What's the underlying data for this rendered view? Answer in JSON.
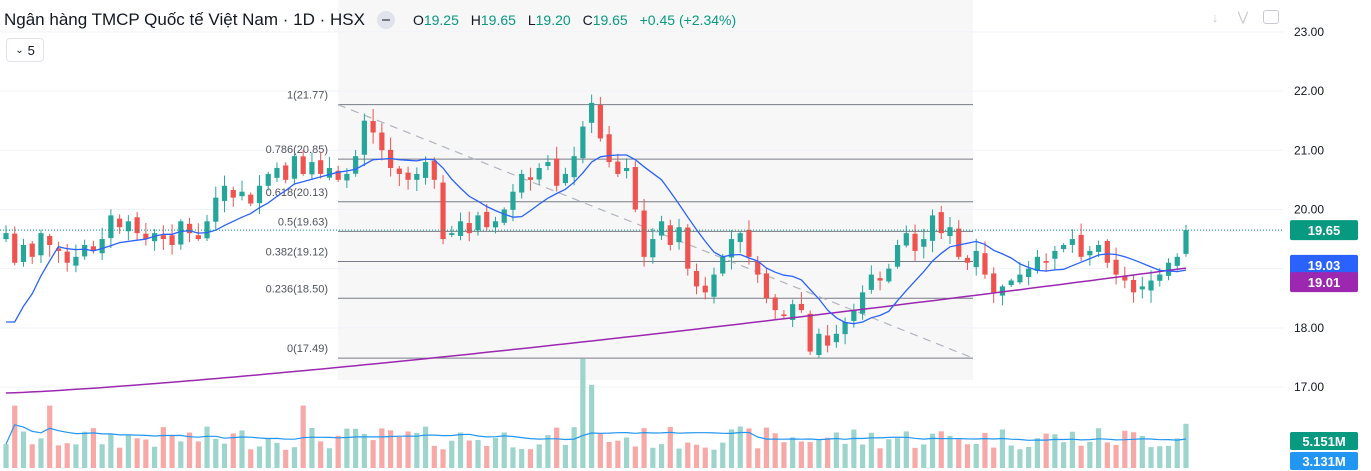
{
  "header": {
    "symbol_title": "Ngân hàng TMCP Quốc tế Việt Nam · 1D · HSX",
    "open_label": "O",
    "open_value": "19.25",
    "high_label": "H",
    "high_value": "19.65",
    "low_label": "L",
    "low_value": "19.20",
    "close_label": "C",
    "close_value": "19.65",
    "change": "+0.45 (+2.34%)",
    "indicator_count": "5"
  },
  "colors": {
    "up": "#26a69a",
    "down": "#ef5350",
    "ma_short": "#2962ff",
    "ma_long": "#9c27b0",
    "vol_up": "#9dd5cc",
    "vol_down": "#f7a9a7",
    "vol_ma": "#2196f3",
    "fib": "#787b86",
    "price_label": "#089981"
  },
  "chart_data": {
    "type": "candlestick",
    "y_axis": {
      "range": [
        16.9,
        23.2
      ],
      "ticks": [
        "23.00",
        "22.00",
        "21.00",
        "20.00",
        "19.00",
        "18.00",
        "17.00"
      ]
    },
    "price_labels": [
      {
        "text": "19.65",
        "value": 19.65,
        "color": "#089981"
      },
      {
        "text": "19.03",
        "value": 19.03,
        "color": "#2962ff"
      },
      {
        "text": "19.01",
        "value": 19.01,
        "color": "#9c27b0"
      }
    ],
    "volume_labels": [
      {
        "text": "5.151M",
        "color": "#089981"
      },
      {
        "text": "3.131M",
        "color": "#2196f3"
      }
    ],
    "fibonacci": [
      {
        "label": "1(21.77)",
        "value": 21.77
      },
      {
        "label": "0.786(20.85)",
        "value": 20.85
      },
      {
        "label": "0.618(20.13)",
        "value": 20.13
      },
      {
        "label": "0.5(19.63)",
        "value": 19.63
      },
      {
        "label": "0.382(19.12)",
        "value": 19.12
      },
      {
        "label": "0.236(18.50)",
        "value": 18.5
      },
      {
        "label": "0(17.49)",
        "value": 17.49
      }
    ],
    "closes": [
      19.6,
      19.1,
      19.4,
      19.2,
      19.6,
      19.4,
      19.3,
      19.1,
      19.2,
      19.4,
      19.3,
      19.5,
      19.9,
      19.7,
      19.8,
      19.6,
      19.5,
      19.6,
      19.5,
      19.4,
      19.8,
      19.6,
      19.5,
      19.8,
      20.2,
      20.4,
      20.2,
      20.3,
      20.1,
      20.4,
      20.6,
      20.7,
      20.5,
      20.9,
      20.6,
      20.8,
      20.6,
      20.7,
      20.5,
      20.6,
      20.9,
      21.5,
      21.3,
      21.0,
      20.7,
      20.6,
      20.5,
      20.6,
      20.8,
      20.5,
      19.5,
      19.6,
      19.8,
      19.6,
      19.9,
      19.7,
      19.8,
      20.0,
      20.3,
      20.6,
      20.5,
      20.7,
      20.8,
      20.4,
      20.6,
      20.9,
      21.4,
      21.8,
      21.2,
      20.8,
      20.6,
      20.7,
      20.0,
      19.2,
      19.5,
      19.8,
      19.4,
      19.7,
      19.0,
      18.7,
      18.6,
      18.9,
      19.2,
      19.5,
      19.6,
      19.2,
      18.9,
      18.5,
      18.3,
      18.2,
      18.4,
      18.3,
      17.6,
      17.9,
      17.7,
      17.9,
      18.1,
      18.3,
      18.6,
      18.9,
      18.8,
      19.0,
      19.4,
      19.6,
      19.3,
      19.5,
      19.9,
      19.6,
      19.7,
      19.2,
      19.1,
      19.3,
      18.9,
      18.6,
      18.7,
      18.8,
      18.9,
      19.0,
      19.2,
      19.1,
      19.3,
      19.4,
      19.5,
      19.2,
      19.3,
      19.4,
      19.1,
      18.9,
      18.8,
      18.6,
      18.7,
      18.8,
      18.9,
      19.1,
      19.2,
      19.65
    ],
    "vol_ma_label": "3.131M"
  }
}
